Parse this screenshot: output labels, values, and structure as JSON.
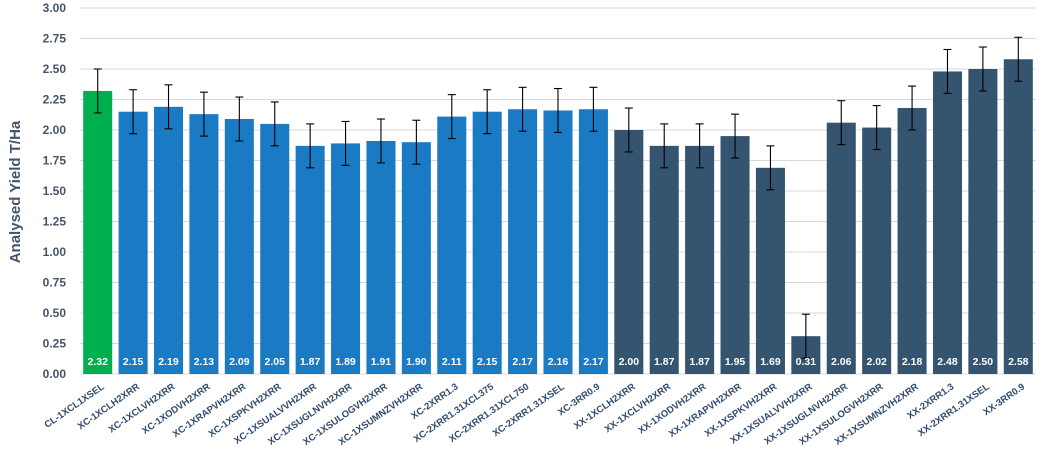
{
  "chart_data": {
    "type": "bar",
    "ylabel": "Analysed Yield T/Ha",
    "ylim": [
      0,
      3.0
    ],
    "yticks": [
      "0.00",
      "0.25",
      "0.50",
      "0.75",
      "1.00",
      "1.25",
      "1.50",
      "1.75",
      "2.00",
      "2.25",
      "2.50",
      "2.75",
      "3.00"
    ],
    "grid": true,
    "categories": [
      "CL-1XCL1XSEL",
      "XC-1XCLH2XRR",
      "XC-1XCLVH2XRR",
      "XC-1XODVH2XRR",
      "XC-1XRAPVH2XRR",
      "XC-1XSPKVH2XRR",
      "XC-1XSUALVVH2XRR",
      "XC-1XSUGLNVH2XRR",
      "XC-1XSULOGVH2XRR",
      "XC-1XSUMNZVH2XRR",
      "XC-2XRR1.3",
      "XC-2XRR1.31XCL375",
      "XC-2XRR1.31XCL750",
      "XC-2XRR1.31XSEL",
      "XC-3RR0.9",
      "XX-1XCLH2XRR",
      "XX-1XCLVH2XRR",
      "XX-1XODVH2XRR",
      "XX-1XRAPVH2XRR",
      "XX-1XSPKVH2XRR",
      "XX-1XSUALVVH2XRR",
      "XX-1XSUGLNVH2XRR",
      "XX-1XSULOGVH2XRR",
      "XX-1XSUMNZVH2XRR",
      "XX-2XRR1.3",
      "XX-2XRR1.31XSEL",
      "XX-3RR0.9"
    ],
    "values": [
      2.32,
      2.15,
      2.19,
      2.13,
      2.09,
      2.05,
      1.87,
      1.89,
      1.91,
      1.9,
      2.11,
      2.15,
      2.17,
      2.16,
      2.17,
      2.0,
      1.87,
      1.87,
      1.95,
      1.69,
      0.31,
      2.06,
      2.02,
      2.18,
      2.48,
      2.5,
      2.58
    ],
    "value_labels": [
      "2.32",
      "2.15",
      "2.19",
      "2.13",
      "2.09",
      "2.05",
      "1.87",
      "1.89",
      "1.91",
      "1.90",
      "2.11",
      "2.15",
      "2.17",
      "2.16",
      "2.17",
      "2.00",
      "1.87",
      "1.87",
      "1.95",
      "1.69",
      "0.31",
      "2.06",
      "2.02",
      "2.18",
      "2.48",
      "2.50",
      "2.58"
    ],
    "error_margin": 0.18,
    "bar_groups": [
      "CL",
      "XC",
      "XC",
      "XC",
      "XC",
      "XC",
      "XC",
      "XC",
      "XC",
      "XC",
      "XC",
      "XC",
      "XC",
      "XC",
      "XC",
      "XX",
      "XX",
      "XX",
      "XX",
      "XX",
      "XX",
      "XX",
      "XX",
      "XX",
      "XX",
      "XX",
      "XX"
    ],
    "colors": {
      "CL": "#00b050",
      "XC": "#1a7ac4",
      "XX": "#34546f"
    }
  }
}
